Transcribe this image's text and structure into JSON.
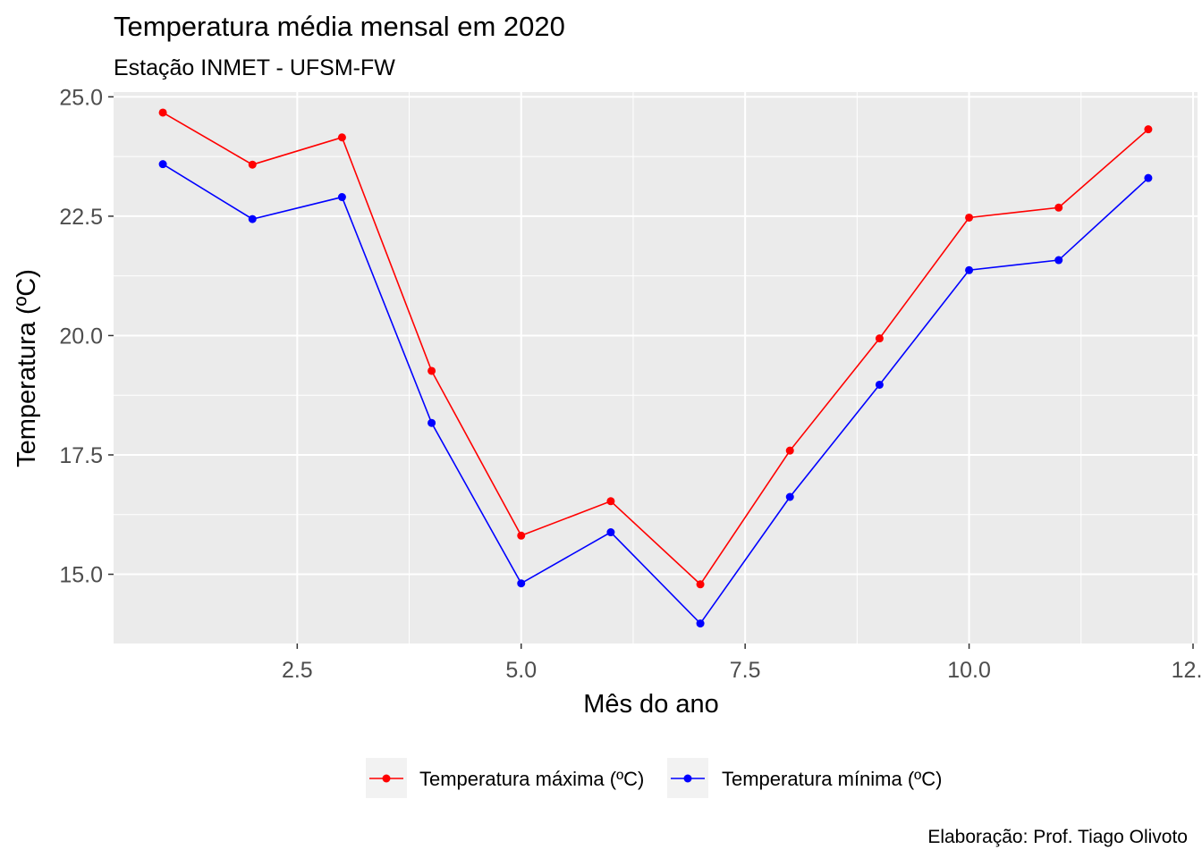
{
  "chart_data": {
    "type": "line",
    "title": "Temperatura média mensal em 2020",
    "subtitle": "Estação INMET - UFSM-FW",
    "xlabel": "Mês do ano",
    "ylabel": "Temperatura (ºC)",
    "caption": "Elaboração: Prof. Tiago Olivoto",
    "xlim": [
      0.45,
      12.55
    ],
    "ylim": [
      13.55,
      25.1
    ],
    "x_ticks": [
      2.5,
      5.0,
      7.5,
      10.0,
      12.5
    ],
    "x_tick_labels": [
      "2.5",
      "5.0",
      "7.5",
      "10.0",
      "12.5"
    ],
    "y_ticks": [
      15.0,
      17.5,
      20.0,
      22.5,
      25.0
    ],
    "y_tick_labels": [
      "15.0",
      "17.5",
      "20.0",
      "22.5",
      "25.0"
    ],
    "grid": true,
    "legend_position": "bottom",
    "x": [
      1,
      2,
      3,
      4,
      5,
      6,
      7,
      8,
      9,
      10,
      11,
      12
    ],
    "series": [
      {
        "name": "Temperatura máxima (ºC)",
        "color": "#ff0000",
        "values": [
          24.67,
          23.58,
          24.15,
          19.26,
          15.81,
          16.53,
          14.79,
          17.59,
          19.94,
          22.47,
          22.68,
          24.32
        ]
      },
      {
        "name": "Temperatura mínima (ºC)",
        "color": "#0000ff",
        "values": [
          23.59,
          22.44,
          22.9,
          18.17,
          14.81,
          15.88,
          13.97,
          16.62,
          18.97,
          21.37,
          21.58,
          23.3
        ]
      }
    ]
  }
}
